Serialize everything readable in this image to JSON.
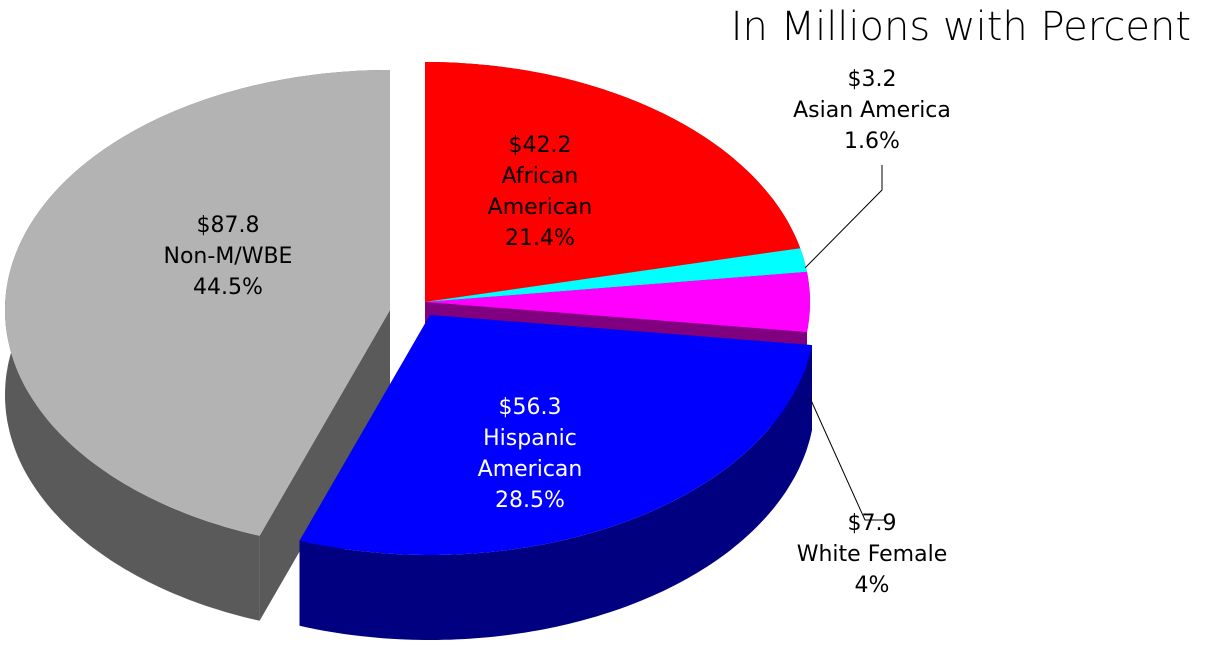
{
  "chart_data": {
    "type": "pie",
    "title": "In Millions with Percent",
    "categories": [
      "African American",
      "Asian America",
      "White Female",
      "Hispanic American",
      "Non-M/WBE"
    ],
    "values": [
      21.4,
      1.6,
      4,
      28.5,
      44.5
    ],
    "value_labels": [
      "21.4%",
      "1.6%",
      "4%",
      "28.5%",
      "44.5%"
    ],
    "amounts": [
      42.2,
      3.2,
      7.9,
      56.3,
      87.8
    ],
    "amount_labels": [
      "$42.2",
      "$3.2",
      "$7.9",
      "$56.3",
      "$87.8"
    ],
    "colors": [
      "#ff0000",
      "#00ffff",
      "#ff00ff",
      "#0000ff",
      "#b3b3b3"
    ]
  }
}
